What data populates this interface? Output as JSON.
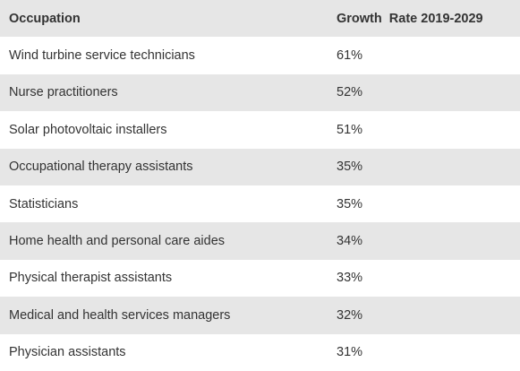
{
  "table": {
    "headers": {
      "occupation": "Occupation",
      "growth_rate": "Growth  Rate 2019-2029"
    },
    "rows": [
      {
        "occupation": "Wind turbine service technicians",
        "growth_rate": "61%"
      },
      {
        "occupation": "Nurse practitioners",
        "growth_rate": "52%"
      },
      {
        "occupation": "Solar photovoltaic installers",
        "growth_rate": "51%"
      },
      {
        "occupation": "Occupational therapy assistants",
        "growth_rate": "35%"
      },
      {
        "occupation": "Statisticians",
        "growth_rate": "35%"
      },
      {
        "occupation": "Home health and personal care aides",
        "growth_rate": "34%"
      },
      {
        "occupation": "Physical therapist assistants",
        "growth_rate": "33%"
      },
      {
        "occupation": "Medical and health services managers",
        "growth_rate": "32%"
      },
      {
        "occupation": "Physician assistants",
        "growth_rate": "31%"
      }
    ]
  },
  "colors": {
    "shaded_row": "#e6e6e6",
    "plain_row": "#ffffff",
    "text": "#333333"
  }
}
